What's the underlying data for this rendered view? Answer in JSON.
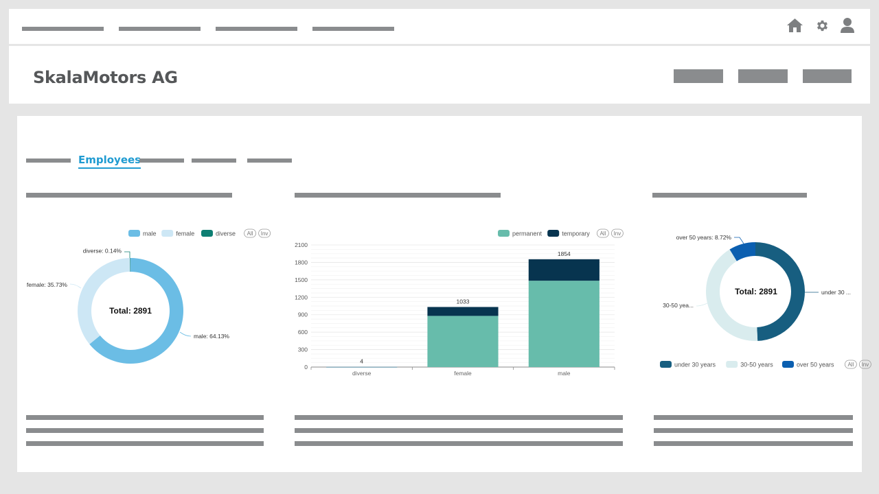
{
  "header": {
    "company_name": "SkalaMotors AG",
    "icons": [
      "home-icon",
      "gear-icon",
      "user-icon"
    ]
  },
  "tabs": {
    "active_label": "Employees"
  },
  "charts_ui": {
    "legend_all": "All",
    "legend_inv": "Inv"
  },
  "chart_data": [
    {
      "type": "pie",
      "variant": "donut",
      "title": "",
      "center_label": "Total: 2891",
      "total": 2891,
      "categories": [
        "male",
        "female",
        "diverse"
      ],
      "values": [
        64.13,
        35.73,
        0.14
      ],
      "labels": [
        "male: 64.13%",
        "female: 35.73%",
        "diverse: 0.14%"
      ],
      "colors": [
        "#6bbde5",
        "#cde7f5",
        "#0e7f73"
      ],
      "legend_position": "top-right"
    },
    {
      "type": "bar",
      "stacked": true,
      "title": "",
      "categories": [
        "diverse",
        "female",
        "male"
      ],
      "series": [
        {
          "name": "permanent",
          "values": [
            4,
            880,
            1485
          ],
          "color": "#67bcab"
        },
        {
          "name": "temporary",
          "values": [
            0,
            153,
            369
          ],
          "color": "#07344f"
        }
      ],
      "totals": [
        4,
        1033,
        1854
      ],
      "yticks": [
        0,
        300,
        600,
        900,
        1200,
        1500,
        1800,
        2100
      ],
      "ylim": [
        0,
        2100
      ],
      "xlabel": "",
      "ylabel": "",
      "grid": true,
      "legend_position": "top-right"
    },
    {
      "type": "pie",
      "variant": "donut",
      "title": "",
      "center_label": "Total: 2891",
      "total": 2891,
      "categories": [
        "under 30 years",
        "30-50 years",
        "over 50 years"
      ],
      "values": [
        49.3,
        41.98,
        8.72
      ],
      "labels": [
        "under 30 ...",
        "30-50 yea...",
        "over 50 years: 8.72%"
      ],
      "colors": [
        "#175e80",
        "#d9ecee",
        "#0b5fb0"
      ],
      "legend_position": "bottom"
    }
  ]
}
